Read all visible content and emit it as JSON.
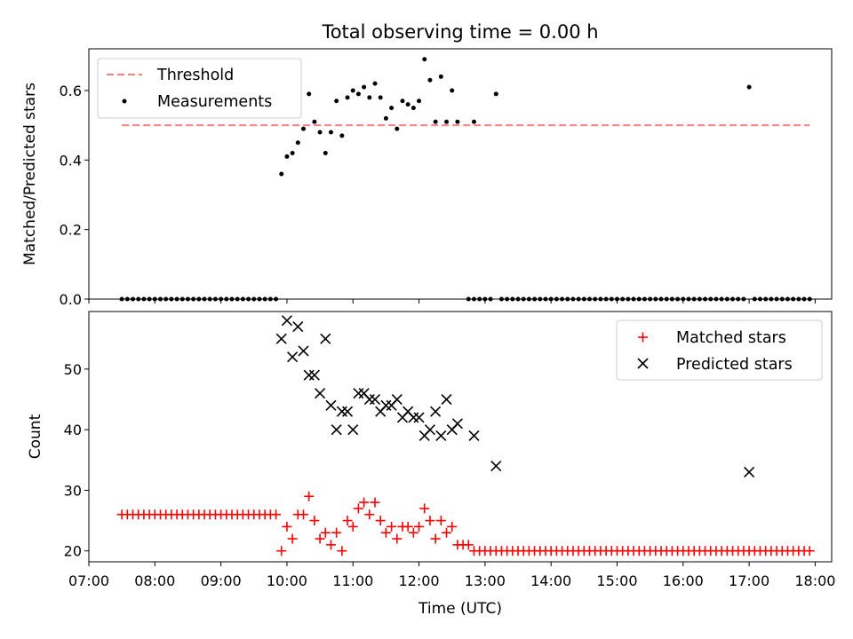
{
  "chart_data": [
    {
      "type": "scatter",
      "title": "Total observing time = 0.00 h",
      "xlabel": "",
      "ylabel": "Matched/Predicted stars",
      "ylim": [
        0,
        0.72
      ],
      "yticks": [
        "0.0",
        "0.2",
        "0.4",
        "0.6"
      ],
      "xlim": [
        "07:00",
        "18:15"
      ],
      "legend_position": "upper-left",
      "grid": false,
      "series": [
        {
          "name": "Threshold",
          "kind": "line",
          "style": "dashed",
          "color": "#ff7f7f",
          "x": [
            "07:30",
            "17:55"
          ],
          "y": [
            0.5,
            0.5
          ]
        },
        {
          "name": "Measurements",
          "kind": "scatter",
          "marker": "dot",
          "color": "#000000",
          "zero_runs": [
            {
              "start": "07:30",
              "end": "09:50",
              "step_min": 5
            },
            {
              "start": "12:45",
              "end": "12:50",
              "step_min": 5
            },
            {
              "start": "12:55",
              "end": "13:05",
              "step_min": 5
            },
            {
              "start": "13:15",
              "end": "16:55",
              "step_min": 5
            },
            {
              "start": "17:05",
              "end": "17:55",
              "step_min": 5
            }
          ],
          "points": [
            [
              "09:55",
              0.36
            ],
            [
              "10:00",
              0.41
            ],
            [
              "10:05",
              0.42
            ],
            [
              "10:10",
              0.45
            ],
            [
              "10:15",
              0.49
            ],
            [
              "10:20",
              0.59
            ],
            [
              "10:25",
              0.51
            ],
            [
              "10:30",
              0.48
            ],
            [
              "10:35",
              0.42
            ],
            [
              "10:40",
              0.48
            ],
            [
              "10:45",
              0.57
            ],
            [
              "10:50",
              0.47
            ],
            [
              "10:55",
              0.58
            ],
            [
              "11:00",
              0.6
            ],
            [
              "11:05",
              0.59
            ],
            [
              "11:10",
              0.61
            ],
            [
              "11:15",
              0.58
            ],
            [
              "11:20",
              0.62
            ],
            [
              "11:25",
              0.58
            ],
            [
              "11:30",
              0.52
            ],
            [
              "11:35",
              0.55
            ],
            [
              "11:40",
              0.49
            ],
            [
              "11:45",
              0.57
            ],
            [
              "11:50",
              0.56
            ],
            [
              "11:55",
              0.55
            ],
            [
              "12:00",
              0.57
            ],
            [
              "12:05",
              0.69
            ],
            [
              "12:10",
              0.63
            ],
            [
              "12:15",
              0.51
            ],
            [
              "12:20",
              0.64
            ],
            [
              "12:25",
              0.51
            ],
            [
              "12:30",
              0.6
            ],
            [
              "12:35",
              0.51
            ],
            [
              "12:50",
              0.51
            ],
            [
              "13:10",
              0.59
            ],
            [
              "17:00",
              0.61
            ]
          ]
        }
      ]
    },
    {
      "type": "scatter",
      "title": "",
      "xlabel": "Time (UTC)",
      "ylabel": "Count",
      "ylim": [
        18.2,
        59.5
      ],
      "yticks": [
        "20",
        "30",
        "40",
        "50"
      ],
      "xlim": [
        "07:00",
        "18:15"
      ],
      "xticks": [
        "07:00",
        "08:00",
        "09:00",
        "10:00",
        "11:00",
        "12:00",
        "13:00",
        "14:00",
        "15:00",
        "16:00",
        "17:00",
        "18:00"
      ],
      "legend_position": "upper-right",
      "grid": false,
      "series": [
        {
          "name": "Matched stars",
          "marker": "plus",
          "color": "#ff0000",
          "runs": [
            {
              "start": "07:30",
              "end": "09:50",
              "step_min": 5,
              "value": 26
            },
            {
              "start": "12:55",
              "end": "17:55",
              "step_min": 5,
              "value": 20
            }
          ],
          "points": [
            [
              "09:55",
              20
            ],
            [
              "10:00",
              24
            ],
            [
              "10:05",
              22
            ],
            [
              "10:10",
              26
            ],
            [
              "10:15",
              26
            ],
            [
              "10:20",
              29
            ],
            [
              "10:25",
              25
            ],
            [
              "10:30",
              22
            ],
            [
              "10:35",
              23
            ],
            [
              "10:40",
              21
            ],
            [
              "10:45",
              23
            ],
            [
              "10:50",
              20
            ],
            [
              "10:55",
              25
            ],
            [
              "11:00",
              24
            ],
            [
              "11:05",
              27
            ],
            [
              "11:10",
              28
            ],
            [
              "11:15",
              26
            ],
            [
              "11:20",
              28
            ],
            [
              "11:25",
              25
            ],
            [
              "11:30",
              23
            ],
            [
              "11:35",
              24
            ],
            [
              "11:40",
              22
            ],
            [
              "11:45",
              24
            ],
            [
              "11:50",
              24
            ],
            [
              "11:55",
              23
            ],
            [
              "12:00",
              24
            ],
            [
              "12:05",
              27
            ],
            [
              "12:10",
              25
            ],
            [
              "12:15",
              22
            ],
            [
              "12:20",
              25
            ],
            [
              "12:25",
              23
            ],
            [
              "12:30",
              24
            ],
            [
              "12:35",
              21
            ],
            [
              "12:40",
              21
            ],
            [
              "12:45",
              21
            ],
            [
              "12:50",
              20
            ]
          ]
        },
        {
          "name": "Predicted stars",
          "marker": "x",
          "color": "#000000",
          "points": [
            [
              "09:55",
              55
            ],
            [
              "10:00",
              58
            ],
            [
              "10:05",
              52
            ],
            [
              "10:10",
              57
            ],
            [
              "10:15",
              53
            ],
            [
              "10:20",
              49
            ],
            [
              "10:25",
              49
            ],
            [
              "10:30",
              46
            ],
            [
              "10:35",
              55
            ],
            [
              "10:40",
              44
            ],
            [
              "10:45",
              40
            ],
            [
              "10:50",
              43
            ],
            [
              "10:55",
              43
            ],
            [
              "11:00",
              40
            ],
            [
              "11:05",
              46
            ],
            [
              "11:10",
              46
            ],
            [
              "11:15",
              45
            ],
            [
              "11:20",
              45
            ],
            [
              "11:25",
              43
            ],
            [
              "11:30",
              44
            ],
            [
              "11:35",
              44
            ],
            [
              "11:40",
              45
            ],
            [
              "11:45",
              42
            ],
            [
              "11:50",
              43
            ],
            [
              "11:55",
              42
            ],
            [
              "12:00",
              42
            ],
            [
              "12:05",
              39
            ],
            [
              "12:10",
              40
            ],
            [
              "12:15",
              43
            ],
            [
              "12:20",
              39
            ],
            [
              "12:25",
              45
            ],
            [
              "12:30",
              40
            ],
            [
              "12:35",
              41
            ],
            [
              "12:50",
              39
            ],
            [
              "13:10",
              34
            ],
            [
              "17:00",
              33
            ]
          ]
        }
      ]
    }
  ]
}
